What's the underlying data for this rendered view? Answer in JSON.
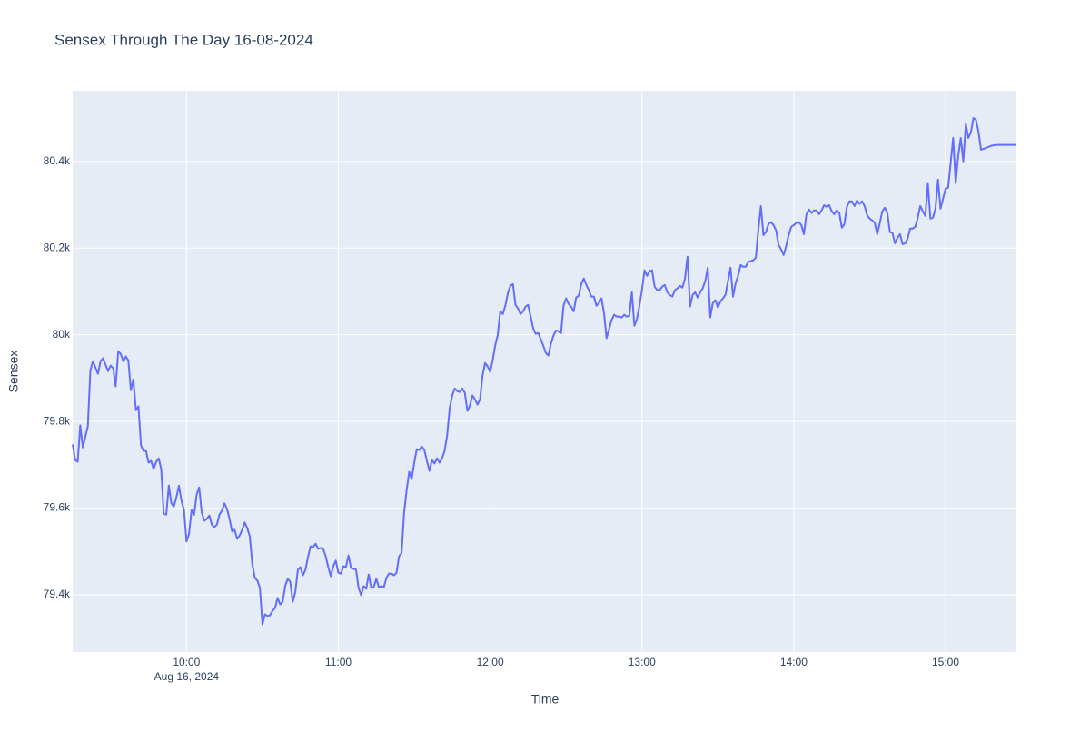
{
  "chart_data": {
    "type": "line",
    "title": "Sensex Through The Day 16-08-2024",
    "x_label": "Time",
    "y_label": "Sensex",
    "xtick_date": "Aug 16, 2024",
    "color": "#636efa",
    "grid": true,
    "xlim": [
      "2024-08-16 09:15",
      "2024-08-16 15:28"
    ],
    "ylim": [
      79268,
      80563
    ],
    "xticks": [
      {
        "value": "2024-08-16 10:00",
        "label": "10:00"
      },
      {
        "value": "2024-08-16 11:00",
        "label": "11:00"
      },
      {
        "value": "2024-08-16 12:00",
        "label": "12:00"
      },
      {
        "value": "2024-08-16 13:00",
        "label": "13:00"
      },
      {
        "value": "2024-08-16 14:00",
        "label": "14:00"
      },
      {
        "value": "2024-08-16 15:00",
        "label": "15:00"
      }
    ],
    "yticks": [
      {
        "value": 79400,
        "label": "79.4k"
      },
      {
        "value": 79600,
        "label": "79.6k"
      },
      {
        "value": 79800,
        "label": "79.8k"
      },
      {
        "value": 80000,
        "label": "80k"
      },
      {
        "value": 80200,
        "label": "80.2k"
      },
      {
        "value": 80400,
        "label": "80.4k"
      }
    ],
    "x": [
      "2024-08-16 09:15",
      "2024-08-16 09:16",
      "2024-08-16 09:17",
      "2024-08-16 09:18",
      "2024-08-16 09:19",
      "2024-08-16 09:21",
      "2024-08-16 09:22",
      "2024-08-16 09:23",
      "2024-08-16 09:25",
      "2024-08-16 09:26",
      "2024-08-16 09:27",
      "2024-08-16 09:29",
      "2024-08-16 09:30",
      "2024-08-16 09:31",
      "2024-08-16 09:32",
      "2024-08-16 09:33",
      "2024-08-16 09:34",
      "2024-08-16 09:35",
      "2024-08-16 09:36",
      "2024-08-16 09:37",
      "2024-08-16 09:38",
      "2024-08-16 09:39",
      "2024-08-16 09:40",
      "2024-08-16 09:41",
      "2024-08-16 09:42",
      "2024-08-16 09:43",
      "2024-08-16 09:44",
      "2024-08-16 09:45",
      "2024-08-16 09:46",
      "2024-08-16 09:47",
      "2024-08-16 09:48",
      "2024-08-16 09:49",
      "2024-08-16 09:50",
      "2024-08-16 09:51",
      "2024-08-16 09:52",
      "2024-08-16 09:53",
      "2024-08-16 09:54",
      "2024-08-16 09:55",
      "2024-08-16 09:56",
      "2024-08-16 09:57",
      "2024-08-16 09:58",
      "2024-08-16 09:59",
      "2024-08-16 10:00",
      "2024-08-16 10:01",
      "2024-08-16 10:02",
      "2024-08-16 10:03",
      "2024-08-16 10:04",
      "2024-08-16 10:05",
      "2024-08-16 10:06",
      "2024-08-16 10:07",
      "2024-08-16 10:08",
      "2024-08-16 10:09",
      "2024-08-16 10:10",
      "2024-08-16 10:11",
      "2024-08-16 10:12",
      "2024-08-16 10:13",
      "2024-08-16 10:14",
      "2024-08-16 10:15",
      "2024-08-16 10:16",
      "2024-08-16 10:17",
      "2024-08-16 10:18",
      "2024-08-16 10:19",
      "2024-08-16 10:20",
      "2024-08-16 10:21",
      "2024-08-16 10:22",
      "2024-08-16 10:23",
      "2024-08-16 10:24",
      "2024-08-16 10:25",
      "2024-08-16 10:26",
      "2024-08-16 10:27",
      "2024-08-16 10:28",
      "2024-08-16 10:29",
      "2024-08-16 10:30",
      "2024-08-16 10:31",
      "2024-08-16 10:32",
      "2024-08-16 10:33",
      "2024-08-16 10:34",
      "2024-08-16 10:35",
      "2024-08-16 10:36",
      "2024-08-16 10:37",
      "2024-08-16 10:38",
      "2024-08-16 10:39",
      "2024-08-16 10:40",
      "2024-08-16 10:41",
      "2024-08-16 10:42",
      "2024-08-16 10:43",
      "2024-08-16 10:44",
      "2024-08-16 10:45",
      "2024-08-16 10:46",
      "2024-08-16 10:47",
      "2024-08-16 10:48",
      "2024-08-16 10:49",
      "2024-08-16 10:50",
      "2024-08-16 10:51",
      "2024-08-16 10:52",
      "2024-08-16 10:53",
      "2024-08-16 10:54",
      "2024-08-16 10:55",
      "2024-08-16 10:56",
      "2024-08-16 10:57",
      "2024-08-16 10:58",
      "2024-08-16 10:59",
      "2024-08-16 11:00",
      "2024-08-16 11:01",
      "2024-08-16 11:02",
      "2024-08-16 11:03",
      "2024-08-16 11:04",
      "2024-08-16 11:05",
      "2024-08-16 11:06",
      "2024-08-16 11:07",
      "2024-08-16 11:08",
      "2024-08-16 11:09",
      "2024-08-16 11:10",
      "2024-08-16 11:11",
      "2024-08-16 11:12",
      "2024-08-16 11:13",
      "2024-08-16 11:14",
      "2024-08-16 11:15",
      "2024-08-16 11:16",
      "2024-08-16 11:17",
      "2024-08-16 11:18",
      "2024-08-16 11:19",
      "2024-08-16 11:20",
      "2024-08-16 11:21",
      "2024-08-16 11:22",
      "2024-08-16 11:23",
      "2024-08-16 11:24",
      "2024-08-16 11:25",
      "2024-08-16 11:26",
      "2024-08-16 11:27",
      "2024-08-16 11:28",
      "2024-08-16 11:29",
      "2024-08-16 11:30",
      "2024-08-16 11:31",
      "2024-08-16 11:32",
      "2024-08-16 11:33",
      "2024-08-16 11:34",
      "2024-08-16 11:35",
      "2024-08-16 11:36",
      "2024-08-16 11:37",
      "2024-08-16 11:38",
      "2024-08-16 11:39",
      "2024-08-16 11:40",
      "2024-08-16 11:41",
      "2024-08-16 11:42",
      "2024-08-16 11:43",
      "2024-08-16 11:44",
      "2024-08-16 11:45",
      "2024-08-16 11:46",
      "2024-08-16 11:47",
      "2024-08-16 11:48",
      "2024-08-16 11:49",
      "2024-08-16 11:50",
      "2024-08-16 11:51",
      "2024-08-16 11:52",
      "2024-08-16 11:53",
      "2024-08-16 11:54",
      "2024-08-16 11:55",
      "2024-08-16 11:56",
      "2024-08-16 11:57",
      "2024-08-16 11:58",
      "2024-08-16 11:59",
      "2024-08-16 12:00",
      "2024-08-16 12:01",
      "2024-08-16 12:02",
      "2024-08-16 12:03",
      "2024-08-16 12:04",
      "2024-08-16 12:05",
      "2024-08-16 12:06",
      "2024-08-16 12:07",
      "2024-08-16 12:08",
      "2024-08-16 12:09",
      "2024-08-16 12:10",
      "2024-08-16 12:11",
      "2024-08-16 12:12",
      "2024-08-16 12:13",
      "2024-08-16 12:14",
      "2024-08-16 12:15",
      "2024-08-16 12:16",
      "2024-08-16 12:17",
      "2024-08-16 12:18",
      "2024-08-16 12:19",
      "2024-08-16 12:20",
      "2024-08-16 12:21",
      "2024-08-16 12:22",
      "2024-08-16 12:23",
      "2024-08-16 12:24",
      "2024-08-16 12:25",
      "2024-08-16 12:26",
      "2024-08-16 12:27",
      "2024-08-16 12:28",
      "2024-08-16 12:29",
      "2024-08-16 12:30",
      "2024-08-16 12:31",
      "2024-08-16 12:32",
      "2024-08-16 12:33",
      "2024-08-16 12:34",
      "2024-08-16 12:35",
      "2024-08-16 12:36",
      "2024-08-16 12:37",
      "2024-08-16 12:38",
      "2024-08-16 12:39",
      "2024-08-16 12:40",
      "2024-08-16 12:41",
      "2024-08-16 12:42",
      "2024-08-16 12:43",
      "2024-08-16 12:44",
      "2024-08-16 12:45",
      "2024-08-16 12:46",
      "2024-08-16 12:47",
      "2024-08-16 12:48",
      "2024-08-16 12:49",
      "2024-08-16 12:50",
      "2024-08-16 12:51",
      "2024-08-16 12:52",
      "2024-08-16 12:53",
      "2024-08-16 12:54",
      "2024-08-16 12:55",
      "2024-08-16 12:56",
      "2024-08-16 12:57",
      "2024-08-16 12:58",
      "2024-08-16 12:59",
      "2024-08-16 13:00",
      "2024-08-16 13:01",
      "2024-08-16 13:02",
      "2024-08-16 13:03",
      "2024-08-16 13:04",
      "2024-08-16 13:05",
      "2024-08-16 13:06",
      "2024-08-16 13:07",
      "2024-08-16 13:08",
      "2024-08-16 13:09",
      "2024-08-16 13:10",
      "2024-08-16 13:11",
      "2024-08-16 13:12",
      "2024-08-16 13:13",
      "2024-08-16 13:14",
      "2024-08-16 13:15",
      "2024-08-16 13:16",
      "2024-08-16 13:17",
      "2024-08-16 13:18",
      "2024-08-16 13:19",
      "2024-08-16 13:20",
      "2024-08-16 13:21",
      "2024-08-16 13:22",
      "2024-08-16 13:23",
      "2024-08-16 13:24",
      "2024-08-16 13:25",
      "2024-08-16 13:26",
      "2024-08-16 13:27",
      "2024-08-16 13:28",
      "2024-08-16 13:29",
      "2024-08-16 13:30",
      "2024-08-16 13:31",
      "2024-08-16 13:32",
      "2024-08-16 13:33",
      "2024-08-16 13:34",
      "2024-08-16 13:35",
      "2024-08-16 13:36",
      "2024-08-16 13:37",
      "2024-08-16 13:38",
      "2024-08-16 13:39",
      "2024-08-16 13:40",
      "2024-08-16 13:41",
      "2024-08-16 13:42",
      "2024-08-16 13:43",
      "2024-08-16 13:44",
      "2024-08-16 13:45",
      "2024-08-16 13:46",
      "2024-08-16 13:47",
      "2024-08-16 13:48",
      "2024-08-16 13:49",
      "2024-08-16 13:50",
      "2024-08-16 13:51",
      "2024-08-16 13:52",
      "2024-08-16 13:53",
      "2024-08-16 13:54",
      "2024-08-16 13:55",
      "2024-08-16 13:56",
      "2024-08-16 13:57",
      "2024-08-16 13:58",
      "2024-08-16 13:59",
      "2024-08-16 14:00",
      "2024-08-16 14:01",
      "2024-08-16 14:02",
      "2024-08-16 14:03",
      "2024-08-16 14:04",
      "2024-08-16 14:05",
      "2024-08-16 14:06",
      "2024-08-16 14:07",
      "2024-08-16 14:08",
      "2024-08-16 14:09",
      "2024-08-16 14:10",
      "2024-08-16 14:11",
      "2024-08-16 14:12",
      "2024-08-16 14:13",
      "2024-08-16 14:14",
      "2024-08-16 14:15",
      "2024-08-16 14:16",
      "2024-08-16 14:17",
      "2024-08-16 14:18",
      "2024-08-16 14:19",
      "2024-08-16 14:20",
      "2024-08-16 14:21",
      "2024-08-16 14:22",
      "2024-08-16 14:23",
      "2024-08-16 14:24",
      "2024-08-16 14:25",
      "2024-08-16 14:26",
      "2024-08-16 14:27",
      "2024-08-16 14:28",
      "2024-08-16 14:29",
      "2024-08-16 14:30",
      "2024-08-16 14:31",
      "2024-08-16 14:32",
      "2024-08-16 14:33",
      "2024-08-16 14:34",
      "2024-08-16 14:35",
      "2024-08-16 14:36",
      "2024-08-16 14:37",
      "2024-08-16 14:38",
      "2024-08-16 14:39",
      "2024-08-16 14:40",
      "2024-08-16 14:41",
      "2024-08-16 14:42",
      "2024-08-16 14:43",
      "2024-08-16 14:44",
      "2024-08-16 14:45",
      "2024-08-16 14:46",
      "2024-08-16 14:47",
      "2024-08-16 14:48",
      "2024-08-16 14:49",
      "2024-08-16 14:50",
      "2024-08-16 14:51",
      "2024-08-16 14:52",
      "2024-08-16 14:53",
      "2024-08-16 14:54",
      "2024-08-16 14:55",
      "2024-08-16 14:56",
      "2024-08-16 14:57",
      "2024-08-16 14:58",
      "2024-08-16 14:59",
      "2024-08-16 15:00",
      "2024-08-16 15:01",
      "2024-08-16 15:02",
      "2024-08-16 15:03",
      "2024-08-16 15:04",
      "2024-08-16 15:05",
      "2024-08-16 15:06",
      "2024-08-16 15:07",
      "2024-08-16 15:08",
      "2024-08-16 15:09",
      "2024-08-16 15:10",
      "2024-08-16 15:11",
      "2024-08-16 15:12",
      "2024-08-16 15:13",
      "2024-08-16 15:14",
      "2024-08-16 15:15",
      "2024-08-16 15:16",
      "2024-08-16 15:18",
      "2024-08-16 15:20",
      "2024-08-16 15:28"
    ],
    "values": [
      79747,
      79711,
      79707,
      79791,
      79740,
      79789,
      79918,
      79939,
      79910,
      79939,
      79946,
      79916,
      79929,
      79923,
      79881,
      79962,
      79956,
      79939,
      79950,
      79941,
      79872,
      79897,
      79826,
      79835,
      79745,
      79732,
      79732,
      79705,
      79709,
      79690,
      79707,
      79715,
      79690,
      79587,
      79585,
      79652,
      79611,
      79604,
      79625,
      79652,
      79617,
      79596,
      79523,
      79541,
      79596,
      79585,
      79631,
      79648,
      79590,
      79571,
      79575,
      79583,
      79562,
      79556,
      79562,
      79585,
      79594,
      79611,
      79598,
      79575,
      79546,
      79550,
      79529,
      79537,
      79550,
      79567,
      79554,
      79535,
      79470,
      79439,
      79433,
      79416,
      79332,
      79355,
      79351,
      79353,
      79363,
      79370,
      79393,
      79378,
      79384,
      79420,
      79437,
      79430,
      79384,
      79407,
      79458,
      79464,
      79445,
      79458,
      79487,
      79512,
      79510,
      79518,
      79506,
      79508,
      79506,
      79489,
      79464,
      79443,
      79466,
      79479,
      79451,
      79449,
      79466,
      79464,
      79491,
      79462,
      79460,
      79458,
      79416,
      79399,
      79420,
      79414,
      79447,
      79416,
      79418,
      79437,
      79418,
      79420,
      79418,
      79439,
      79449,
      79449,
      79445,
      79451,
      79489,
      79497,
      79590,
      79642,
      79684,
      79667,
      79705,
      79736,
      79734,
      79742,
      79734,
      79709,
      79686,
      79711,
      79703,
      79715,
      79705,
      79715,
      79732,
      79768,
      79830,
      79860,
      79876,
      79870,
      79868,
      79876,
      79866,
      79824,
      79837,
      79860,
      79851,
      79839,
      79851,
      79906,
      79935,
      79927,
      79914,
      79941,
      79975,
      80000,
      80054,
      80048,
      80067,
      80096,
      80113,
      80117,
      80069,
      80061,
      80048,
      80054,
      80065,
      80069,
      80042,
      80015,
      80002,
      80004,
      79990,
      79975,
      79958,
      79952,
      79979,
      79998,
      80010,
      80008,
      80004,
      80067,
      80084,
      80071,
      80065,
      80054,
      80086,
      80090,
      80117,
      80130,
      80115,
      80103,
      80088,
      80088,
      80067,
      80073,
      80084,
      80050,
      79992,
      80013,
      80034,
      80046,
      80042,
      80042,
      80040,
      80046,
      80042,
      80044,
      80098,
      80021,
      80036,
      80067,
      80103,
      80149,
      80136,
      80147,
      80149,
      80111,
      80103,
      80103,
      80111,
      80115,
      80098,
      80092,
      80088,
      80103,
      80107,
      80113,
      80109,
      80130,
      80180,
      80065,
      80092,
      80098,
      80086,
      80098,
      80107,
      80124,
      80155,
      80040,
      80073,
      80080,
      80063,
      80077,
      80084,
      80092,
      80124,
      80155,
      80088,
      80119,
      80136,
      80161,
      80157,
      80157,
      80168,
      80170,
      80172,
      80178,
      80243,
      80297,
      80230,
      80237,
      80255,
      80260,
      80253,
      80241,
      80207,
      80197,
      80184,
      80205,
      80230,
      80249,
      80253,
      80258,
      80260,
      80253,
      80232,
      80278,
      80289,
      80281,
      80287,
      80287,
      80278,
      80287,
      80299,
      80295,
      80299,
      80285,
      80278,
      80287,
      80281,
      80247,
      80255,
      80295,
      80308,
      80308,
      80297,
      80310,
      80302,
      80308,
      80297,
      80276,
      80268,
      80264,
      80258,
      80232,
      80258,
      80285,
      80293,
      80281,
      80237,
      80235,
      80211,
      80224,
      80232,
      80209,
      80211,
      80222,
      80245,
      80245,
      80249,
      80270,
      80297,
      80285,
      80274,
      80350,
      80268,
      80270,
      80291,
      80358,
      80291,
      80314,
      80337,
      80339,
      80396,
      80454,
      80350,
      80413,
      80454,
      80400,
      80486,
      80454,
      80467,
      80500,
      80496,
      80469,
      80427,
      80429,
      80431,
      80436,
      80438,
      80438
    ]
  }
}
